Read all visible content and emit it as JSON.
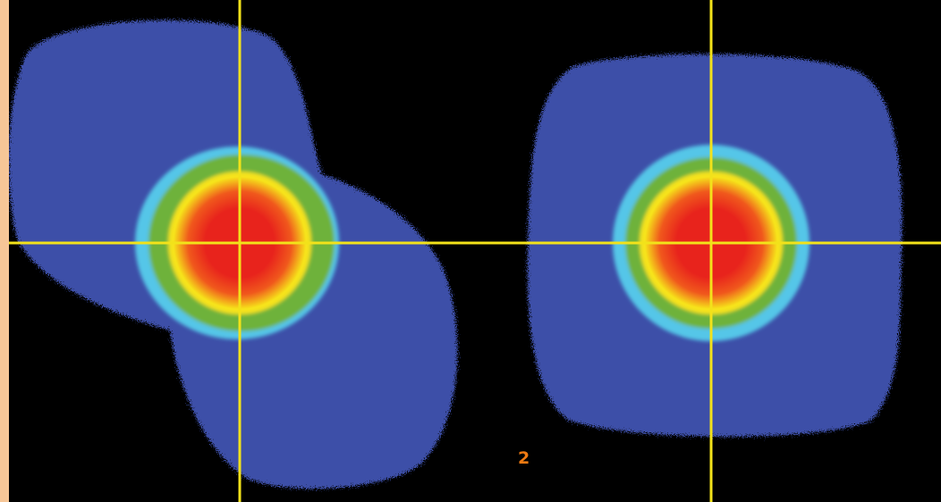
{
  "page_number": "2",
  "colors": {
    "background": "#000000",
    "edge_strip": "#f6c697",
    "halo": "#3c4fa8",
    "crosshair": "#f2e21a",
    "page_number": "#f07a12",
    "profile_core": "#e8231c",
    "profile_mid": "#f0581c",
    "profile_ring_yellow": "#f6e31a",
    "profile_ring_green": "#6eb23a",
    "profile_ring_cyan": "#55c6e8"
  },
  "panels": [
    {
      "name": "left-beam-profile",
      "halo_shape": "asymmetric-lobed"
    },
    {
      "name": "right-beam-profile",
      "halo_shape": "rounded-square"
    }
  ]
}
